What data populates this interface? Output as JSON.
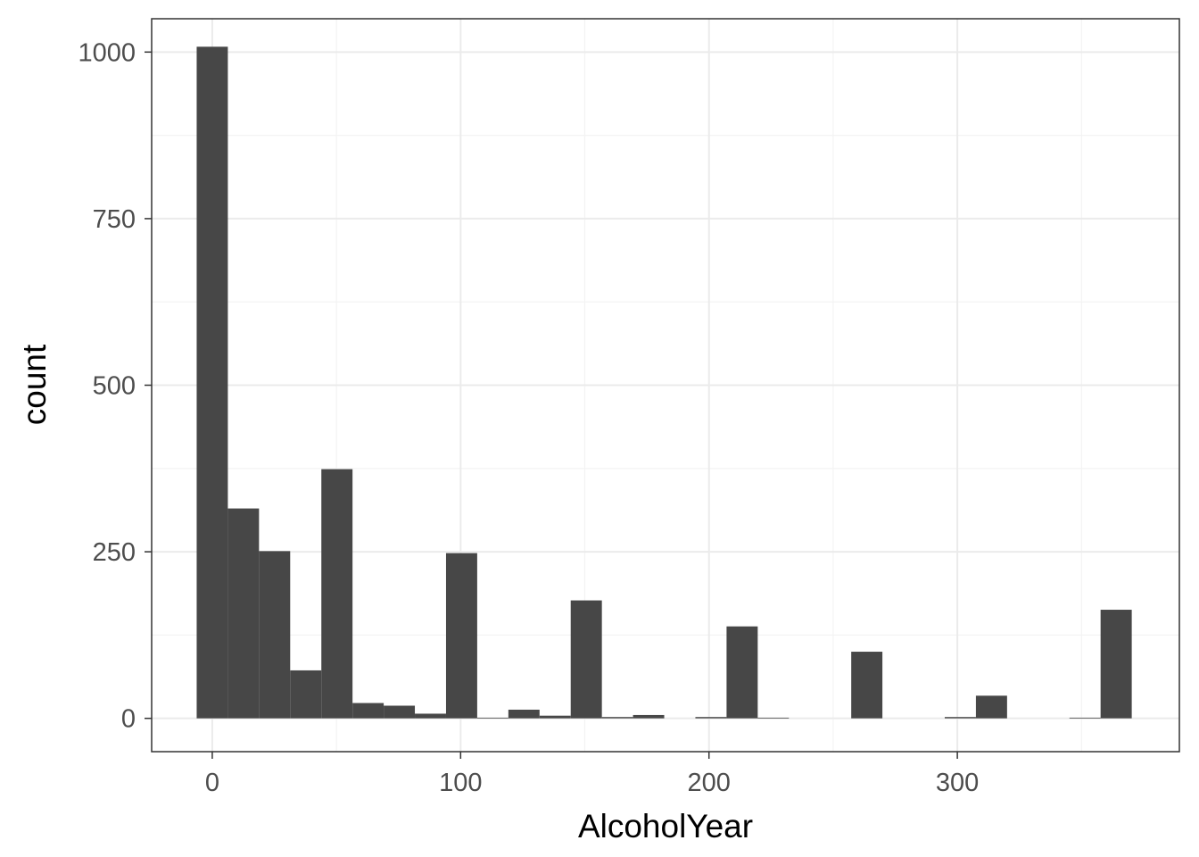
{
  "chart_data": {
    "type": "bar",
    "subtype": "histogram",
    "xlabel": "AlcoholYear",
    "ylabel": "count",
    "xlim": [
      -24.4,
      389.4
    ],
    "ylim": [
      -50,
      1050
    ],
    "x_ticks": [
      0,
      100,
      200,
      300
    ],
    "y_ticks": [
      0,
      250,
      500,
      750,
      1000
    ],
    "x_tick_labels": [
      "0",
      "100",
      "200",
      "300"
    ],
    "y_tick_labels": [
      "0",
      "250",
      "500",
      "750",
      "1000"
    ],
    "bin_width": 12.55,
    "bin_centers": [
      0,
      12.55,
      25.1,
      37.65,
      50.2,
      62.75,
      75.3,
      87.85,
      100.4,
      112.95,
      125.5,
      138.05,
      150.6,
      163.15,
      175.7,
      188.25,
      200.8,
      213.35,
      225.9,
      238.45,
      251,
      263.55,
      276.1,
      288.65,
      301.2,
      313.75,
      326.3,
      338.85,
      351.4,
      363.95
    ],
    "values": [
      1008,
      315,
      251,
      72,
      374,
      23,
      19,
      7,
      248,
      1,
      13,
      4,
      177,
      2,
      5,
      0,
      2,
      138,
      1,
      0,
      0,
      100,
      0,
      0,
      2,
      34,
      0,
      0,
      1,
      163
    ],
    "grid": true,
    "legend": "none",
    "colors": {
      "bar": "#474747",
      "panel_background": "#ffffff",
      "grid_major": "#ebebeb",
      "grid_minor": "#f3f3f3",
      "panel_border": "#333333",
      "axis_text": "#4d4d4d",
      "axis_title": "#000000"
    }
  }
}
